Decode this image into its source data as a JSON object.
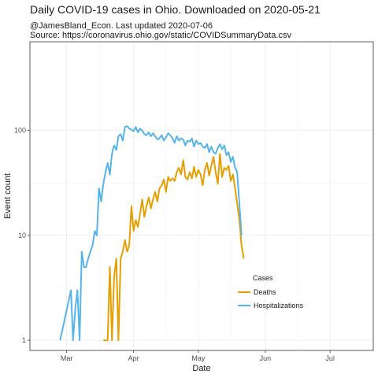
{
  "chart_data": {
    "type": "line",
    "title": "Daily COVID-19 cases in Ohio. Downloaded on 2020-05-21",
    "subtitle_line1": "@JamesBland_Econ. Last updated 2020-07-06",
    "subtitle_line2": "Source: https://coronavirus.ohio.gov/static/COVIDSummaryData.csv",
    "xlabel": "Date",
    "ylabel": "Event count",
    "y_scale": "log10",
    "ylim": [
      0.8,
      700
    ],
    "xlim": [
      "2020-02-13",
      "2020-07-21"
    ],
    "x_ticks": [
      {
        "date": "2020-03-01",
        "label": "Mar"
      },
      {
        "date": "2020-04-01",
        "label": "Apr"
      },
      {
        "date": "2020-05-01",
        "label": "May"
      },
      {
        "date": "2020-06-01",
        "label": "Jun"
      },
      {
        "date": "2020-07-01",
        "label": "Jul"
      }
    ],
    "y_ticks": [
      {
        "value": 1,
        "label": "1"
      },
      {
        "value": 10,
        "label": "10"
      },
      {
        "value": 100,
        "label": "100"
      }
    ],
    "grid": true,
    "legend": {
      "title": "Cases",
      "position": "inside-bottom-right"
    },
    "series": [
      {
        "name": "Deaths",
        "color": "#E69F00",
        "x": [
          "2020-03-18",
          "2020-03-19",
          "2020-03-20",
          "2020-03-21",
          "2020-03-22",
          "2020-03-23",
          "2020-03-24",
          "2020-03-25",
          "2020-03-26",
          "2020-03-27",
          "2020-03-28",
          "2020-03-29",
          "2020-03-30",
          "2020-03-31",
          "2020-04-01",
          "2020-04-02",
          "2020-04-03",
          "2020-04-04",
          "2020-04-05",
          "2020-04-06",
          "2020-04-07",
          "2020-04-08",
          "2020-04-09",
          "2020-04-10",
          "2020-04-11",
          "2020-04-12",
          "2020-04-13",
          "2020-04-14",
          "2020-04-15",
          "2020-04-16",
          "2020-04-17",
          "2020-04-18",
          "2020-04-19",
          "2020-04-20",
          "2020-04-21",
          "2020-04-22",
          "2020-04-23",
          "2020-04-24",
          "2020-04-25",
          "2020-04-26",
          "2020-04-27",
          "2020-04-28",
          "2020-04-29",
          "2020-04-30",
          "2020-05-01",
          "2020-05-02",
          "2020-05-03",
          "2020-05-04",
          "2020-05-05",
          "2020-05-06",
          "2020-05-07",
          "2020-05-08",
          "2020-05-09",
          "2020-05-10",
          "2020-05-11",
          "2020-05-12",
          "2020-05-13",
          "2020-05-14",
          "2020-05-15",
          "2020-05-16",
          "2020-05-17",
          "2020-05-18",
          "2020-05-19",
          "2020-05-20",
          "2020-05-21",
          "2020-05-22"
        ],
        "y": [
          1,
          1,
          1,
          5,
          1,
          4,
          6,
          1,
          6,
          7,
          9,
          7,
          8,
          19,
          11,
          14,
          12,
          16,
          22,
          15,
          19,
          23,
          18,
          22,
          26,
          21,
          28,
          30,
          34,
          26,
          36,
          33,
          35,
          33,
          40,
          44,
          38,
          52,
          36,
          34,
          40,
          35,
          45,
          36,
          42,
          38,
          30,
          42,
          49,
          37,
          46,
          56,
          40,
          31,
          60,
          36,
          44,
          42,
          46,
          33,
          38,
          28,
          20,
          14,
          8,
          6
        ]
      },
      {
        "name": "Hospitalizations",
        "color": "#56B4E9",
        "x": [
          "2020-02-27",
          "2020-03-03",
          "2020-03-04",
          "2020-03-05",
          "2020-03-06",
          "2020-03-07",
          "2020-03-08",
          "2020-03-09",
          "2020-03-10",
          "2020-03-11",
          "2020-03-12",
          "2020-03-13",
          "2020-03-14",
          "2020-03-15",
          "2020-03-16",
          "2020-03-17",
          "2020-03-18",
          "2020-03-19",
          "2020-03-20",
          "2020-03-21",
          "2020-03-22",
          "2020-03-23",
          "2020-03-24",
          "2020-03-25",
          "2020-03-26",
          "2020-03-27",
          "2020-03-28",
          "2020-03-29",
          "2020-03-30",
          "2020-03-31",
          "2020-04-01",
          "2020-04-02",
          "2020-04-03",
          "2020-04-04",
          "2020-04-05",
          "2020-04-06",
          "2020-04-07",
          "2020-04-08",
          "2020-04-09",
          "2020-04-10",
          "2020-04-11",
          "2020-04-12",
          "2020-04-13",
          "2020-04-14",
          "2020-04-15",
          "2020-04-16",
          "2020-04-17",
          "2020-04-18",
          "2020-04-19",
          "2020-04-20",
          "2020-04-21",
          "2020-04-22",
          "2020-04-23",
          "2020-04-24",
          "2020-04-25",
          "2020-04-26",
          "2020-04-27",
          "2020-04-28",
          "2020-04-29",
          "2020-04-30",
          "2020-05-01",
          "2020-05-02",
          "2020-05-03",
          "2020-05-04",
          "2020-05-05",
          "2020-05-06",
          "2020-05-07",
          "2020-05-08",
          "2020-05-09",
          "2020-05-10",
          "2020-05-11",
          "2020-05-12",
          "2020-05-13",
          "2020-05-14",
          "2020-05-15",
          "2020-05-16",
          "2020-05-17",
          "2020-05-18",
          "2020-05-19",
          "2020-05-20",
          "2020-05-21"
        ],
        "y": [
          1,
          3,
          1,
          2,
          3,
          1,
          7,
          5,
          5,
          6,
          7,
          8,
          11,
          10,
          28,
          21,
          31,
          40,
          49,
          38,
          60,
          72,
          65,
          88,
          92,
          80,
          108,
          110,
          104,
          102,
          98,
          108,
          96,
          104,
          100,
          92,
          90,
          96,
          88,
          94,
          88,
          82,
          84,
          90,
          80,
          86,
          94,
          90,
          84,
          76,
          88,
          80,
          84,
          82,
          72,
          80,
          78,
          84,
          70,
          80,
          74,
          76,
          70,
          68,
          74,
          62,
          70,
          62,
          60,
          68,
          74,
          66,
          72,
          58,
          62,
          50,
          56,
          44,
          40,
          20,
          10
        ]
      }
    ]
  }
}
